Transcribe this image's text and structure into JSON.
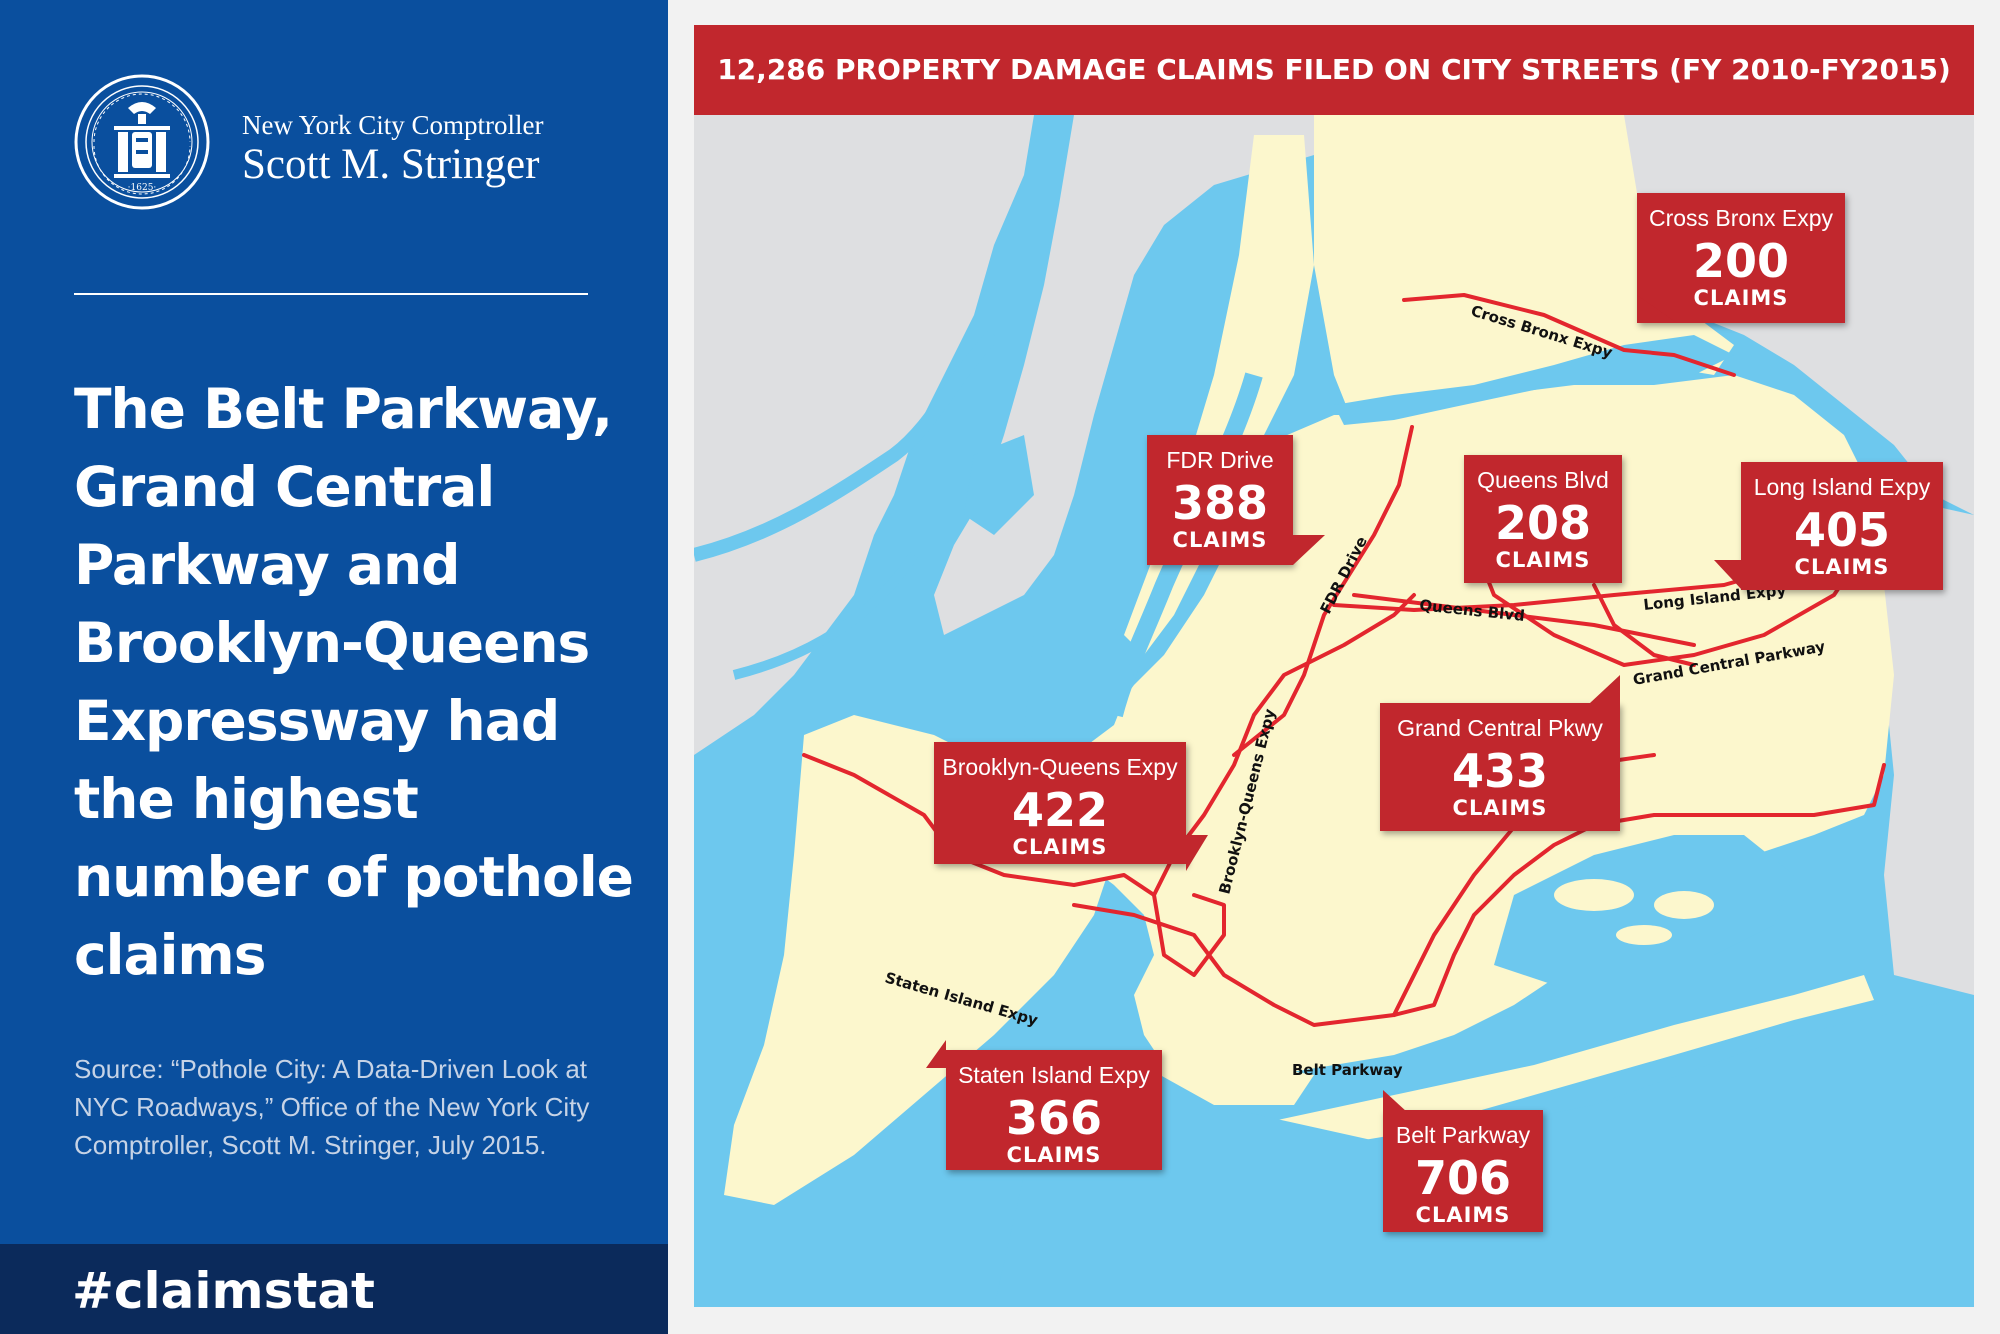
{
  "left_panel": {
    "office_name": "New York City Comptroller",
    "comptroller_name": "Scott M. Stringer",
    "seal_icon": "nyc-city-seal-icon",
    "headline": "The Belt Parkway, Grand Central Parkway and Brooklyn-Queens Expressway had the highest number of pothole claims",
    "source": "Source: “Pothole City: A Data-Driven Look at NYC Roadways,” Office of the New York City Comptroller, Scott M. Stringer, July 2015.",
    "hashtag": "#claimstat"
  },
  "map": {
    "banner_title": "12,286 PROPERTY DAMAGE CLAIMS FILED ON CITY STREETS (FY 2010-FY2015)",
    "colors": {
      "water": "#6dc8ee",
      "city_land": "#fcf7cd",
      "other_land": "#dedfe1",
      "road": "#e3262e",
      "callout": "#c1272d",
      "panel_blue": "#0a4f9e",
      "hashtag_bar": "#0b2a5b"
    },
    "road_labels": {
      "cross_bronx": "Cross Bronx Expy",
      "fdr": "FDR Drive",
      "queens_blvd": "Queens Blvd",
      "lie": "Long Island Expy",
      "gcp": "Grand Central Parkway",
      "bqe": "Brooklyn-Queens Expy",
      "sie": "Staten Island Expy",
      "belt": "Belt Parkway"
    },
    "callouts": [
      {
        "road": "Cross Bronx Expy",
        "claims": 200,
        "unit": "CLAIMS"
      },
      {
        "road": "FDR Drive",
        "claims": 388,
        "unit": "CLAIMS"
      },
      {
        "road": "Queens Blvd",
        "claims": 208,
        "unit": "CLAIMS"
      },
      {
        "road": "Long Island Expy",
        "claims": 405,
        "unit": "CLAIMS"
      },
      {
        "road": "Grand Central Pkwy",
        "claims": 433,
        "unit": "CLAIMS"
      },
      {
        "road": "Brooklyn-Queens Expy",
        "claims": 422,
        "unit": "CLAIMS"
      },
      {
        "road": "Staten Island Expy",
        "claims": 366,
        "unit": "CLAIMS"
      },
      {
        "road": "Belt Parkway",
        "claims": 706,
        "unit": "CLAIMS"
      }
    ]
  }
}
